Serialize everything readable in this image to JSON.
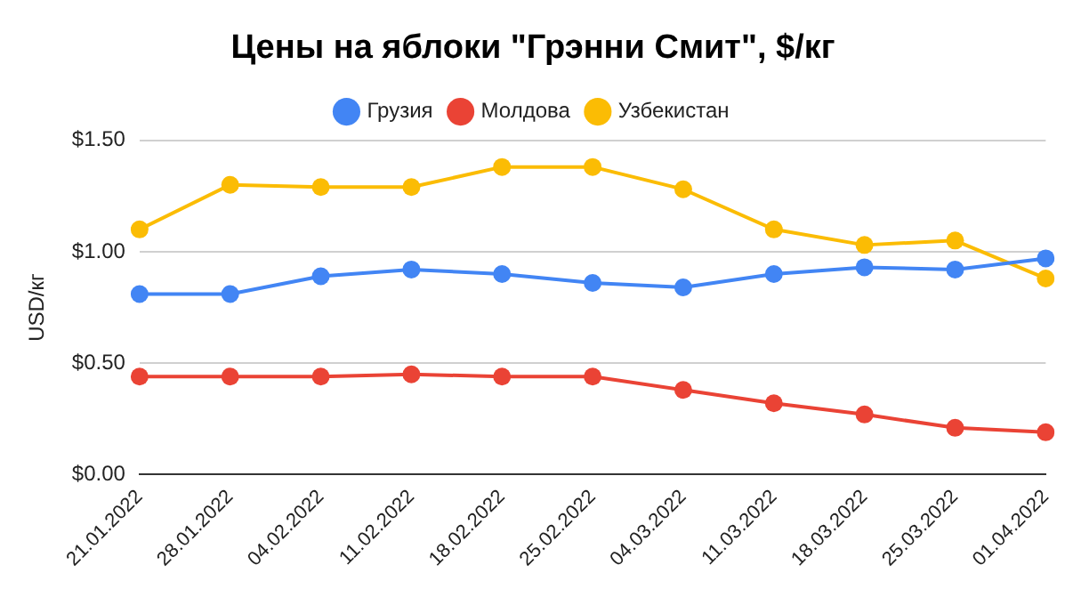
{
  "chart_data": {
    "type": "line",
    "title": "Цены на яблоки \"Грэнни Смит\", $/кг",
    "ylabel": "USD/кг",
    "categories": [
      "21.01.2022",
      "28.01.2022",
      "04.02.2022",
      "11.02.2022",
      "18.02.2022",
      "25.02.2022",
      "04.03.2022",
      "11.03.2022",
      "18.03.2022",
      "25.03.2022",
      "01.04.2022"
    ],
    "series": [
      {
        "name": "Грузия",
        "color": "#4285f4",
        "values": [
          0.81,
          0.81,
          0.89,
          0.92,
          0.9,
          0.86,
          0.84,
          0.9,
          0.93,
          0.92,
          0.97
        ]
      },
      {
        "name": "Молдова",
        "color": "#ea4335",
        "values": [
          0.44,
          0.44,
          0.44,
          0.45,
          0.44,
          0.44,
          0.38,
          0.32,
          0.27,
          0.21,
          0.19
        ]
      },
      {
        "name": "Узбекистан",
        "color": "#fbbc04",
        "values": [
          1.1,
          1.3,
          1.29,
          1.29,
          1.38,
          1.38,
          1.28,
          1.1,
          1.03,
          1.05,
          0.88
        ]
      }
    ],
    "ylim": [
      0,
      1.5
    ],
    "yticks": [
      {
        "value": 0,
        "label": "$0.00"
      },
      {
        "value": 0.5,
        "label": "$0.50"
      },
      {
        "value": 1,
        "label": "$1.00"
      },
      {
        "value": 1.5,
        "label": "$1.50"
      }
    ],
    "grid": "y",
    "legend": "top",
    "marker": "circle",
    "line_style": "solid"
  }
}
